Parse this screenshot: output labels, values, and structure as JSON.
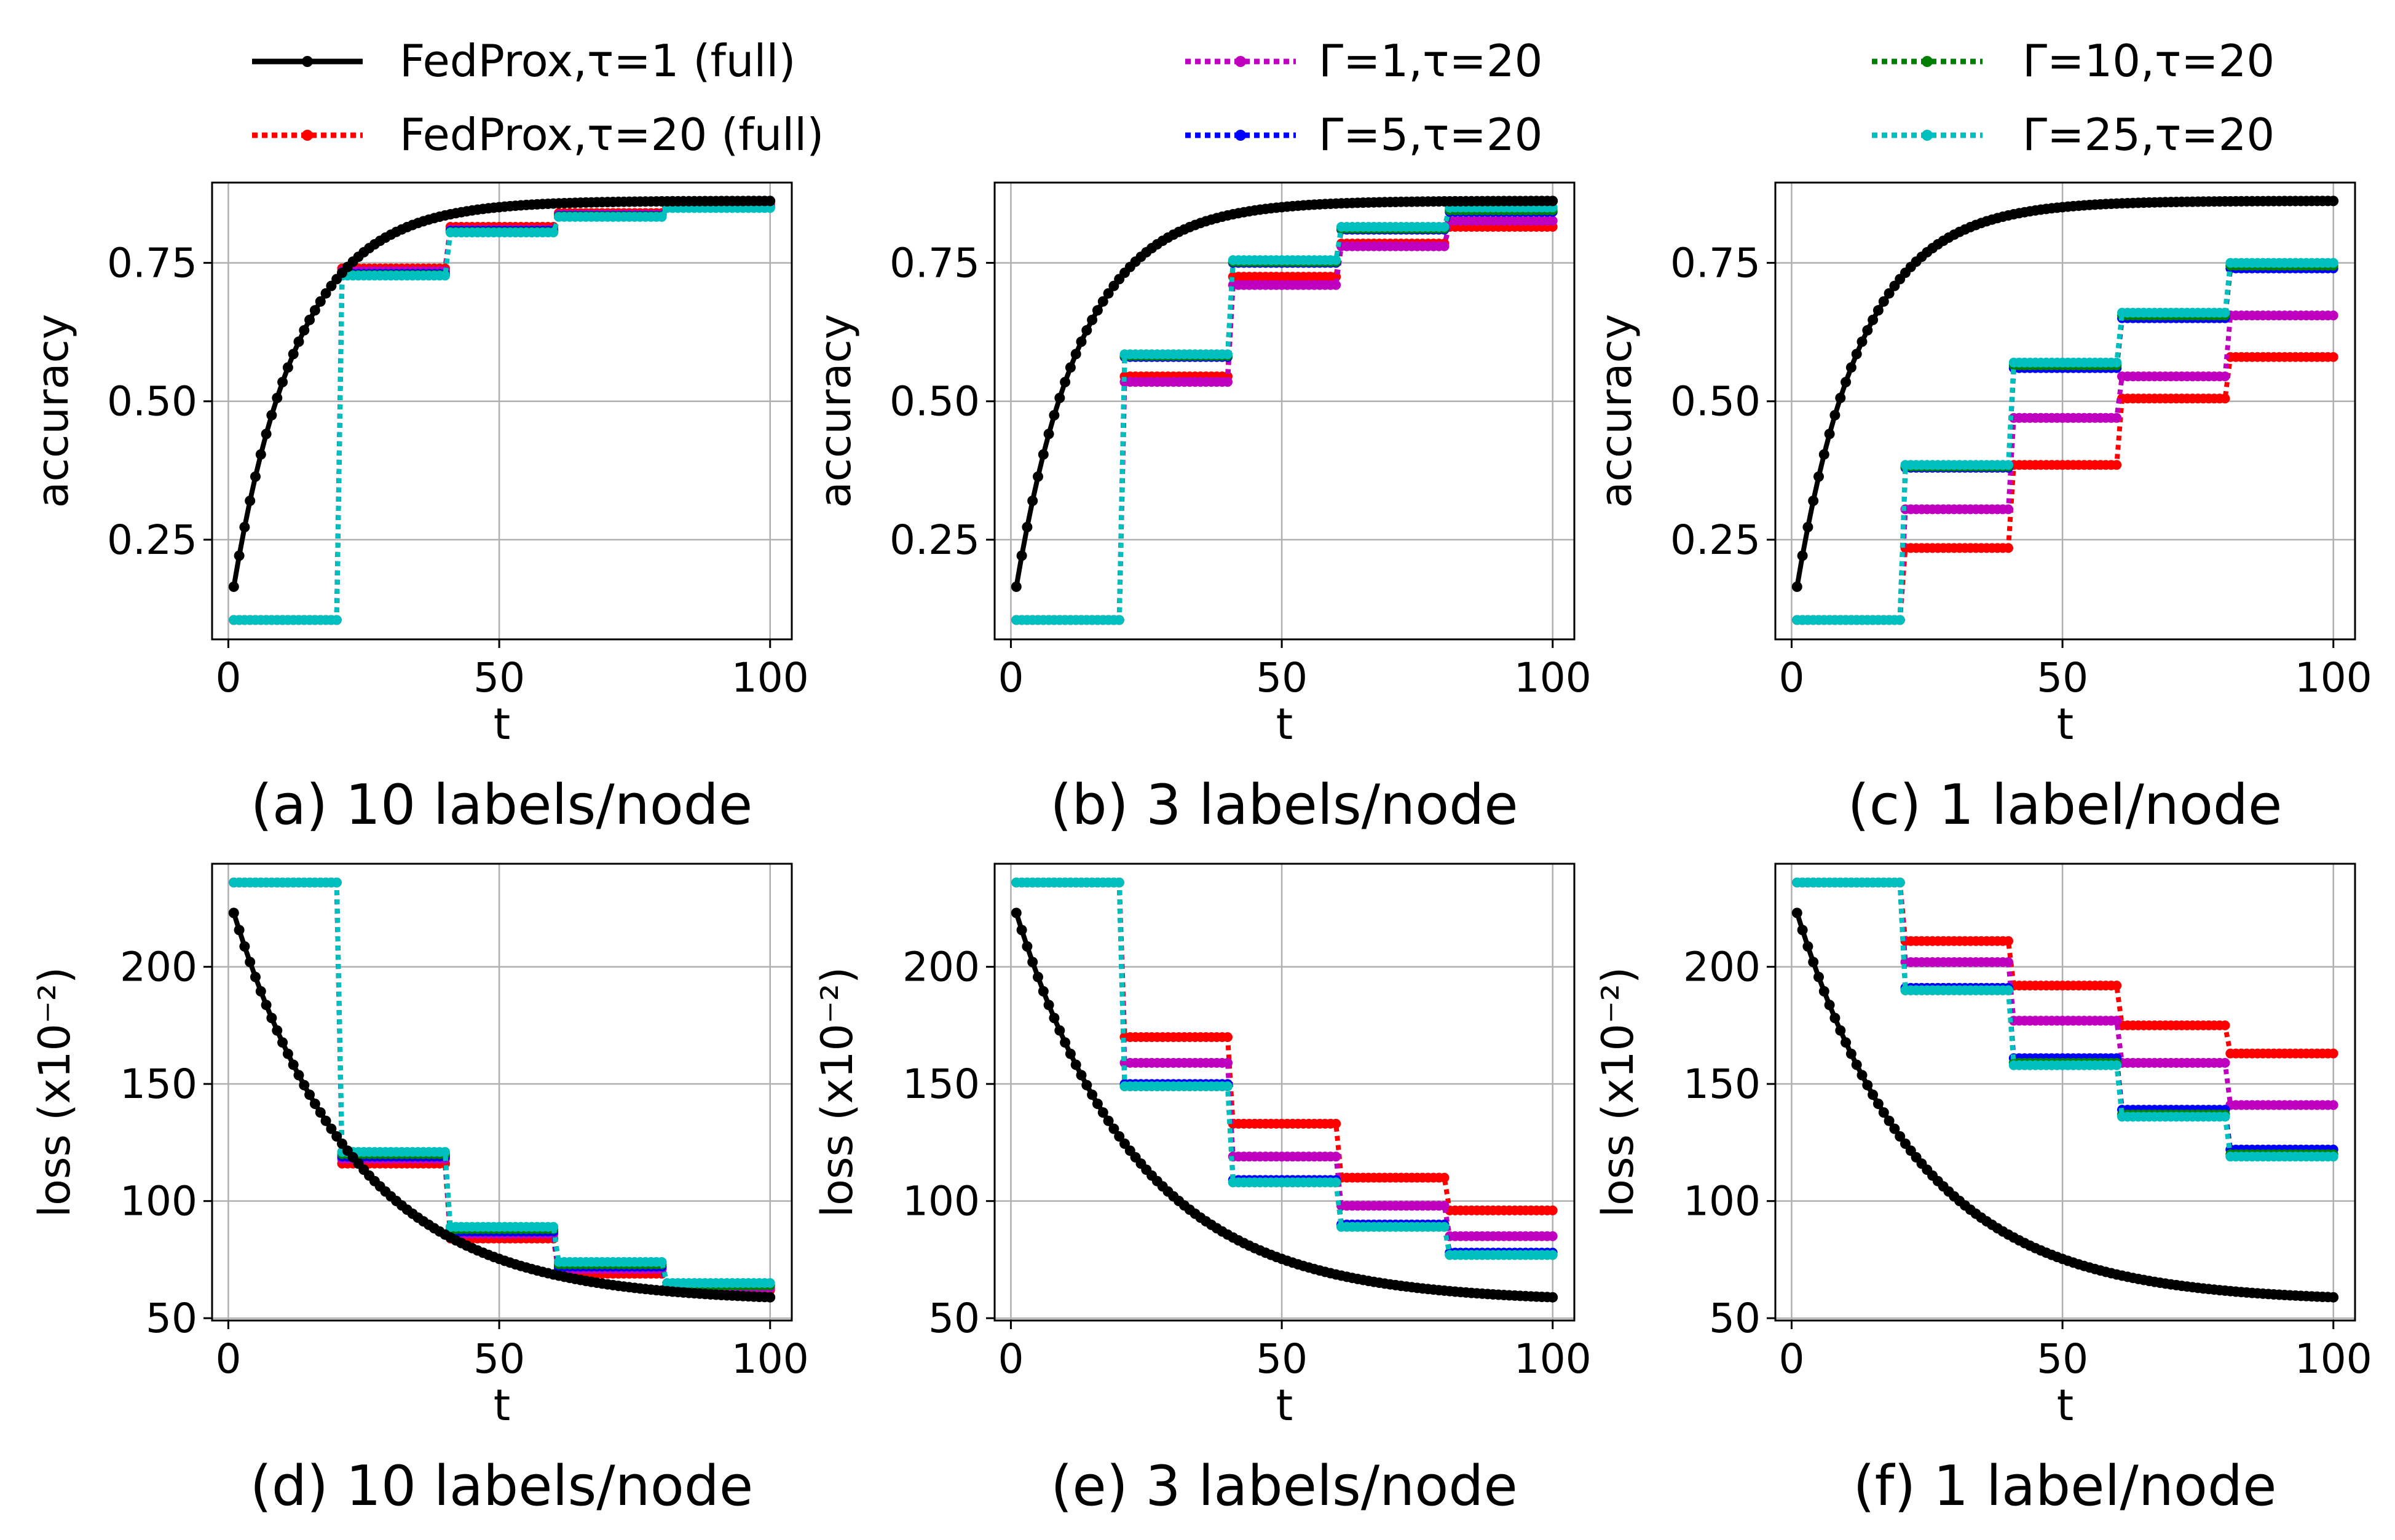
{
  "legend": [
    {
      "key": "fedprox_t1",
      "label": "FedProx,τ=1 (full)",
      "color": "#000000",
      "style": "solid"
    },
    {
      "key": "fedprox_t20",
      "label": "FedProx,τ=20 (full)",
      "color": "#ff0000",
      "style": "dotted"
    },
    {
      "key": "g1",
      "label": "Γ=1,τ=20",
      "color": "#bf00bf",
      "style": "dotted"
    },
    {
      "key": "g5",
      "label": "Γ=5,τ=20",
      "color": "#0000ff",
      "style": "dotted"
    },
    {
      "key": "g10",
      "label": "Γ=10,τ=20",
      "color": "#008000",
      "style": "dotted"
    },
    {
      "key": "g25",
      "label": "Γ=25,τ=20",
      "color": "#00bfbf",
      "style": "dotted"
    }
  ],
  "chart_data": [
    {
      "id": "a",
      "type": "line",
      "caption": "(a) 10 labels/node",
      "xlabel": "t",
      "ylabel": "accuracy",
      "xlim": [
        -3,
        104
      ],
      "ylim": [
        0.07,
        0.895
      ],
      "xticks": [
        0,
        50,
        100
      ],
      "yticks": [
        0.25,
        0.5,
        0.75
      ],
      "ytick_labels": [
        "0.25",
        "0.50",
        "0.75"
      ],
      "base": {
        "type": "acc",
        "start": 0.165,
        "end": 0.862,
        "k": 0.084
      },
      "series": [
        {
          "key": "fedprox_t20",
          "values": [
            0.105,
            0.74,
            0.815,
            0.84,
            0.857
          ]
        },
        {
          "key": "g1",
          "values": [
            0.105,
            0.735,
            0.81,
            0.837,
            0.853
          ]
        },
        {
          "key": "g5",
          "values": [
            0.105,
            0.73,
            0.808,
            0.835,
            0.851
          ]
        },
        {
          "key": "g10",
          "values": [
            0.105,
            0.728,
            0.806,
            0.834,
            0.85
          ]
        },
        {
          "key": "g25",
          "values": [
            0.105,
            0.727,
            0.805,
            0.833,
            0.849
          ]
        }
      ]
    },
    {
      "id": "b",
      "type": "line",
      "caption": "(b) 3 labels/node",
      "xlabel": "t",
      "ylabel": "accuracy",
      "xlim": [
        -3,
        104
      ],
      "ylim": [
        0.07,
        0.895
      ],
      "xticks": [
        0,
        50,
        100
      ],
      "yticks": [
        0.25,
        0.5,
        0.75
      ],
      "ytick_labels": [
        "0.25",
        "0.50",
        "0.75"
      ],
      "base": {
        "type": "acc",
        "start": 0.165,
        "end": 0.862,
        "k": 0.084
      },
      "series": [
        {
          "key": "fedprox_t20",
          "values": [
            0.105,
            0.545,
            0.725,
            0.785,
            0.815
          ]
        },
        {
          "key": "g1",
          "values": [
            0.105,
            0.535,
            0.71,
            0.78,
            0.826
          ]
        },
        {
          "key": "g5",
          "values": [
            0.105,
            0.58,
            0.75,
            0.81,
            0.842
          ]
        },
        {
          "key": "g10",
          "values": [
            0.105,
            0.582,
            0.752,
            0.812,
            0.845
          ]
        },
        {
          "key": "g25",
          "values": [
            0.105,
            0.585,
            0.755,
            0.815,
            0.85
          ]
        }
      ]
    },
    {
      "id": "c",
      "type": "line",
      "caption": "(c) 1 label/node",
      "xlabel": "t",
      "ylabel": "accuracy",
      "xlim": [
        -3,
        104
      ],
      "ylim": [
        0.07,
        0.895
      ],
      "xticks": [
        0,
        50,
        100
      ],
      "yticks": [
        0.25,
        0.5,
        0.75
      ],
      "ytick_labels": [
        "0.25",
        "0.50",
        "0.75"
      ],
      "base": {
        "type": "acc",
        "start": 0.165,
        "end": 0.862,
        "k": 0.084
      },
      "series": [
        {
          "key": "fedprox_t20",
          "values": [
            0.105,
            0.235,
            0.385,
            0.505,
            0.58
          ]
        },
        {
          "key": "g1",
          "values": [
            0.105,
            0.305,
            0.47,
            0.545,
            0.655
          ]
        },
        {
          "key": "g5",
          "values": [
            0.105,
            0.38,
            0.56,
            0.65,
            0.74
          ]
        },
        {
          "key": "g10",
          "values": [
            0.105,
            0.382,
            0.565,
            0.655,
            0.745
          ]
        },
        {
          "key": "g25",
          "values": [
            0.105,
            0.385,
            0.57,
            0.66,
            0.75
          ]
        }
      ]
    },
    {
      "id": "d",
      "type": "line",
      "caption": "(d) 10 labels/node",
      "xlabel": "t",
      "ylabel": "loss (x10⁻²)",
      "xlim": [
        -3,
        104
      ],
      "ylim": [
        49,
        244
      ],
      "xticks": [
        0,
        50,
        100
      ],
      "yticks": [
        50,
        100,
        150,
        200
      ],
      "ytick_labels": [
        "50",
        "100",
        "150",
        "200"
      ],
      "base": {
        "type": "loss",
        "start": 223,
        "end": 57,
        "k": 0.045
      },
      "series": [
        {
          "key": "fedprox_t20",
          "values": [
            236,
            116,
            84,
            69,
            62
          ]
        },
        {
          "key": "g1",
          "values": [
            236,
            118,
            86,
            71,
            63
          ]
        },
        {
          "key": "g5",
          "values": [
            236,
            119,
            87,
            72,
            64
          ]
        },
        {
          "key": "g10",
          "values": [
            236,
            120,
            88,
            73,
            64
          ]
        },
        {
          "key": "g25",
          "values": [
            236,
            121,
            89,
            74,
            65
          ]
        }
      ]
    },
    {
      "id": "e",
      "type": "line",
      "caption": "(e) 3 labels/node",
      "xlabel": "t",
      "ylabel": "loss (x10⁻²)",
      "xlim": [
        -3,
        104
      ],
      "ylim": [
        49,
        244
      ],
      "xticks": [
        0,
        50,
        100
      ],
      "yticks": [
        50,
        100,
        150,
        200
      ],
      "ytick_labels": [
        "50",
        "100",
        "150",
        "200"
      ],
      "base": {
        "type": "loss",
        "start": 223,
        "end": 57,
        "k": 0.045
      },
      "series": [
        {
          "key": "fedprox_t20",
          "values": [
            236,
            170,
            133,
            110,
            96
          ]
        },
        {
          "key": "g1",
          "values": [
            236,
            159,
            119,
            98,
            85
          ]
        },
        {
          "key": "g5",
          "values": [
            236,
            150,
            109,
            90,
            78
          ]
        },
        {
          "key": "g10",
          "values": [
            236,
            149,
            108,
            89,
            77
          ]
        },
        {
          "key": "g25",
          "values": [
            236,
            149,
            108,
            89,
            77
          ]
        }
      ]
    },
    {
      "id": "f",
      "type": "line",
      "caption": "(f) 1 label/node",
      "xlabel": "t",
      "ylabel": "loss (x10⁻²)",
      "xlim": [
        -3,
        104
      ],
      "ylim": [
        49,
        244
      ],
      "xticks": [
        0,
        50,
        100
      ],
      "yticks": [
        50,
        100,
        150,
        200
      ],
      "ytick_labels": [
        "50",
        "100",
        "150",
        "200"
      ],
      "base": {
        "type": "loss",
        "start": 223,
        "end": 57,
        "k": 0.045
      },
      "series": [
        {
          "key": "fedprox_t20",
          "values": [
            236,
            211,
            192,
            175,
            163
          ]
        },
        {
          "key": "g1",
          "values": [
            236,
            202,
            177,
            159,
            141
          ]
        },
        {
          "key": "g5",
          "values": [
            236,
            191,
            161,
            139,
            122
          ]
        },
        {
          "key": "g10",
          "values": [
            236,
            190,
            159,
            137,
            120
          ]
        },
        {
          "key": "g25",
          "values": [
            236,
            190,
            158,
            136,
            119
          ]
        }
      ]
    }
  ]
}
